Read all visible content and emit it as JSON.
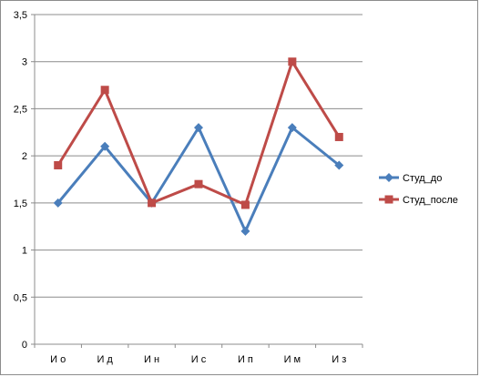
{
  "chart_data": {
    "type": "line",
    "categories": [
      "И о",
      "И д",
      "И н",
      "И с",
      "И п",
      "И м",
      "И з"
    ],
    "ylim": [
      0,
      3.5
    ],
    "yticks": [
      "0",
      "0,5",
      "1",
      "1,5",
      "2",
      "2,5",
      "3",
      "3,5"
    ],
    "grid": true,
    "legend_position": "right",
    "series": [
      {
        "name": "Студ_до",
        "values": [
          1.5,
          2.1,
          1.5,
          2.3,
          1.2,
          2.3,
          1.9
        ],
        "color": "#4a7ebb",
        "marker": "diamond"
      },
      {
        "name": "Студ_после",
        "values": [
          1.9,
          2.7,
          1.5,
          1.7,
          1.48,
          3.0,
          2.2
        ],
        "color": "#be4b48",
        "marker": "square"
      }
    ]
  }
}
